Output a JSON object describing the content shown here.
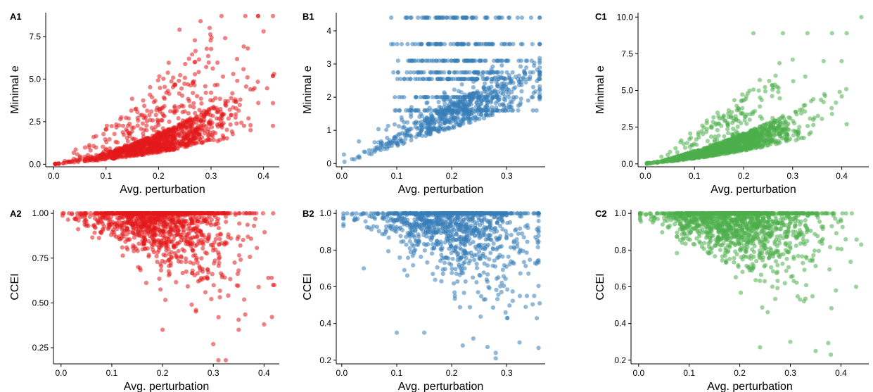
{
  "chart_data": [
    {
      "panel": "A1",
      "type": "scatter",
      "color": "#e41a1c",
      "xlabel": "Avg. perturbation",
      "ylabel": "Minimal e",
      "xlim": [
        -0.015,
        0.43
      ],
      "ylim": [
        -0.15,
        8.9
      ],
      "xticks": [
        0.0,
        0.1,
        0.2,
        0.3,
        0.4
      ],
      "xtick_labels": [
        "0.0",
        "0.1",
        "0.2",
        "0.3",
        "0.4"
      ],
      "yticks": [
        0.0,
        2.5,
        5.0,
        7.5
      ],
      "ytick_labels": [
        "0.0",
        "2.5",
        "5.0",
        "7.5"
      ],
      "grid": false,
      "seed": 11,
      "n_points": 1200,
      "pattern": "fan-up",
      "points": [
        [
          0.01,
          0.05
        ],
        [
          0.05,
          0.4
        ],
        [
          0.1,
          0.9
        ],
        [
          0.15,
          1.5
        ],
        [
          0.2,
          2.3
        ],
        [
          0.25,
          3.1
        ],
        [
          0.3,
          4.2
        ],
        [
          0.32,
          8.7
        ],
        [
          0.37,
          6.8
        ],
        [
          0.4,
          7.8
        ],
        [
          0.42,
          5.3
        ],
        [
          0.39,
          3.6
        ],
        [
          0.35,
          4.9
        ],
        [
          0.28,
          8.4
        ],
        [
          0.24,
          7.9
        ]
      ]
    },
    {
      "panel": "B1",
      "type": "scatter",
      "color": "#377eb8",
      "xlabel": "Avg. perturbation",
      "ylabel": "Minimal e",
      "xlim": [
        -0.01,
        0.37
      ],
      "ylim": [
        -0.1,
        4.55
      ],
      "xticks": [
        0.0,
        0.1,
        0.2,
        0.3
      ],
      "xtick_labels": [
        "0.0",
        "0.1",
        "0.2",
        "0.3"
      ],
      "yticks": [
        0,
        1,
        2,
        3,
        4
      ],
      "ytick_labels": [
        "0",
        "1",
        "2",
        "3",
        "4"
      ],
      "grid": false,
      "seed": 23,
      "n_points": 1100,
      "pattern": "bands",
      "bands": [
        4.4,
        3.6,
        3.1,
        2.75,
        2.55,
        2.0,
        1.6
      ],
      "points": [
        [
          0.005,
          0.05
        ],
        [
          0.05,
          0.4
        ],
        [
          0.1,
          0.7
        ],
        [
          0.15,
          1.1
        ],
        [
          0.2,
          1.6
        ],
        [
          0.25,
          2.0
        ],
        [
          0.3,
          2.4
        ],
        [
          0.36,
          4.4
        ],
        [
          0.36,
          3.6
        ],
        [
          0.09,
          4.4
        ],
        [
          0.09,
          3.6
        ]
      ]
    },
    {
      "panel": "C1",
      "type": "scatter",
      "color": "#4daf4a",
      "xlabel": "Avg. perturbation",
      "ylabel": "Minimal e",
      "xlim": [
        -0.015,
        0.455
      ],
      "ylim": [
        -0.2,
        10.3
      ],
      "xticks": [
        0.0,
        0.1,
        0.2,
        0.3,
        0.4
      ],
      "xtick_labels": [
        "0.0",
        "0.1",
        "0.2",
        "0.3",
        "0.4"
      ],
      "yticks": [
        0.0,
        2.5,
        5.0,
        7.5,
        10.0
      ],
      "ytick_labels": [
        "0.0",
        "2.5",
        "5.0",
        "7.5",
        "10.0"
      ],
      "grid": false,
      "seed": 37,
      "n_points": 1500,
      "pattern": "fan-up-dense",
      "points": [
        [
          0.44,
          10.0
        ],
        [
          0.41,
          8.9
        ],
        [
          0.38,
          8.9
        ],
        [
          0.33,
          8.9
        ],
        [
          0.22,
          8.9
        ],
        [
          0.28,
          8.9
        ],
        [
          0.3,
          7.1
        ],
        [
          0.41,
          2.7
        ],
        [
          0.4,
          4.6
        ],
        [
          0.38,
          3.4
        ]
      ]
    },
    {
      "panel": "A2",
      "type": "scatter",
      "color": "#e41a1c",
      "xlabel": "Avg. perturbation",
      "ylabel": "CCEI",
      "xlim": [
        -0.015,
        0.43
      ],
      "ylim": [
        0.16,
        1.02
      ],
      "xticks": [
        0.0,
        0.1,
        0.2,
        0.3,
        0.4
      ],
      "xtick_labels": [
        "0.0",
        "0.1",
        "0.2",
        "0.3",
        "0.4"
      ],
      "yticks": [
        0.25,
        0.5,
        0.75,
        1.0
      ],
      "ytick_labels": [
        "0.25",
        "0.50",
        "0.75",
        "1.00"
      ],
      "grid": false,
      "seed": 41,
      "n_points": 1200,
      "pattern": "fan-down",
      "points": [
        [
          0.31,
          0.18
        ],
        [
          0.3,
          0.27
        ],
        [
          0.2,
          0.35
        ],
        [
          0.35,
          0.35
        ],
        [
          0.4,
          0.38
        ],
        [
          0.42,
          0.6
        ],
        [
          0.05,
          0.93
        ],
        [
          0.15,
          1.0
        ],
        [
          0.3,
          1.0
        ],
        [
          0.36,
          1.0
        ]
      ]
    },
    {
      "panel": "B2",
      "type": "scatter",
      "color": "#377eb8",
      "xlabel": "Avg. perturbation",
      "ylabel": "CCEI",
      "xlim": [
        -0.01,
        0.37
      ],
      "ylim": [
        0.18,
        1.02
      ],
      "xticks": [
        0.0,
        0.1,
        0.2,
        0.3
      ],
      "xtick_labels": [
        "0.0",
        "0.1",
        "0.2",
        "0.3"
      ],
      "yticks": [
        0.2,
        0.4,
        0.6,
        0.8,
        1.0
      ],
      "ytick_labels": [
        "0.2",
        "0.4",
        "0.6",
        "0.8",
        "1.0"
      ],
      "grid": false,
      "seed": 53,
      "n_points": 1100,
      "pattern": "fan-down",
      "points": [
        [
          0.28,
          0.21
        ],
        [
          0.28,
          0.24
        ],
        [
          0.22,
          0.28
        ],
        [
          0.1,
          0.35
        ],
        [
          0.15,
          0.35
        ],
        [
          0.04,
          0.7
        ],
        [
          0.36,
          0.51
        ],
        [
          0.35,
          0.55
        ],
        [
          0.02,
          1.0
        ],
        [
          0.3,
          1.0
        ]
      ]
    },
    {
      "panel": "C2",
      "type": "scatter",
      "color": "#4daf4a",
      "xlabel": "Avg. perturbation",
      "ylabel": "CCEI",
      "xlim": [
        -0.015,
        0.455
      ],
      "ylim": [
        0.18,
        1.02
      ],
      "xticks": [
        0.0,
        0.1,
        0.2,
        0.3,
        0.4
      ],
      "xtick_labels": [
        "0.0",
        "0.1",
        "0.2",
        "0.3",
        "0.4"
      ],
      "yticks": [
        0.2,
        0.4,
        0.6,
        0.8,
        1.0
      ],
      "ytick_labels": [
        "0.2",
        "0.4",
        "0.6",
        "0.8",
        "1.0"
      ],
      "grid": false,
      "seed": 67,
      "n_points": 1400,
      "pattern": "fan-down",
      "points": [
        [
          0.38,
          0.23
        ],
        [
          0.35,
          0.25
        ],
        [
          0.24,
          0.27
        ],
        [
          0.44,
          0.83
        ],
        [
          0.41,
          1.0
        ],
        [
          0.39,
          0.58
        ],
        [
          0.43,
          0.6
        ],
        [
          0.3,
          0.3
        ]
      ]
    }
  ]
}
